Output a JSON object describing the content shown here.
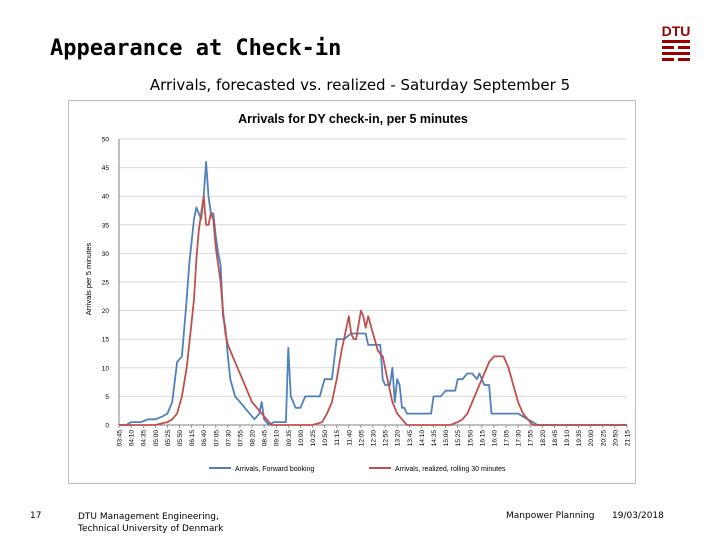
{
  "slide": {
    "title": "Appearance at Check-in",
    "subtitle": "Arrivals, forecasted vs. realized - Saturday September 5",
    "page_number": "17",
    "footer_org_line1": "DTU Management Engineering,",
    "footer_org_line2": "Technical University of Denmark",
    "footer_course": "Manpower Planning",
    "footer_date": "19/03/2018",
    "logo_text": "DTU",
    "logo_color": "#990000"
  },
  "chart_data": {
    "type": "line",
    "title": "Arrivals for DY check-in, per 5 minutes",
    "ylabel": "Arrivals per 5 minutes",
    "xlabel": "",
    "ylim": [
      0,
      50
    ],
    "yticks": [
      0,
      5,
      10,
      15,
      20,
      25,
      30,
      35,
      40,
      45,
      50
    ],
    "xlim": [
      "03:45",
      "21:15"
    ],
    "xticks": [
      "03:45",
      "04:10",
      "04:35",
      "05:00",
      "05:25",
      "05:50",
      "06:15",
      "06:40",
      "07:05",
      "07:30",
      "07:55",
      "08:20",
      "08:45",
      "09:10",
      "09:35",
      "10:00",
      "10:25",
      "10:50",
      "11:15",
      "11:40",
      "12:05",
      "12:30",
      "12:55",
      "13:20",
      "13:45",
      "14:10",
      "14:35",
      "15:00",
      "15:25",
      "15:50",
      "16:15",
      "16:40",
      "17:05",
      "17:30",
      "17:55",
      "18:20",
      "18:45",
      "19:10",
      "19:35",
      "20:00",
      "20:25",
      "20:50",
      "21:15"
    ],
    "grid": "horizontal",
    "legend_position": "bottom",
    "series": [
      {
        "name": "Arrivals, Forward booking",
        "color": "#4f81bd",
        "points": [
          [
            "03:45",
            0
          ],
          [
            "04:00",
            0
          ],
          [
            "04:10",
            0.5
          ],
          [
            "04:15",
            0.5
          ],
          [
            "04:30",
            0.5
          ],
          [
            "04:45",
            1
          ],
          [
            "05:00",
            1
          ],
          [
            "05:15",
            1.5
          ],
          [
            "05:25",
            2
          ],
          [
            "05:35",
            4
          ],
          [
            "05:45",
            11
          ],
          [
            "05:55",
            12
          ],
          [
            "06:05",
            22
          ],
          [
            "06:10",
            28
          ],
          [
            "06:15",
            32
          ],
          [
            "06:20",
            36
          ],
          [
            "06:25",
            38
          ],
          [
            "06:30",
            37
          ],
          [
            "06:35",
            36
          ],
          [
            "06:40",
            40
          ],
          [
            "06:45",
            46
          ],
          [
            "06:50",
            40
          ],
          [
            "06:55",
            37
          ],
          [
            "07:00",
            37
          ],
          [
            "07:05",
            33
          ],
          [
            "07:10",
            30
          ],
          [
            "07:15",
            28
          ],
          [
            "07:20",
            19
          ],
          [
            "07:25",
            17
          ],
          [
            "07:30",
            12
          ],
          [
            "07:35",
            8
          ],
          [
            "07:45",
            5
          ],
          [
            "07:55",
            4
          ],
          [
            "08:05",
            3
          ],
          [
            "08:15",
            2
          ],
          [
            "08:25",
            1
          ],
          [
            "08:35",
            2
          ],
          [
            "08:40",
            4
          ],
          [
            "08:45",
            1
          ],
          [
            "08:55",
            0
          ],
          [
            "09:05",
            0.5
          ],
          [
            "09:20",
            0.5
          ],
          [
            "09:30",
            0.5
          ],
          [
            "09:35",
            13.5
          ],
          [
            "09:40",
            5
          ],
          [
            "09:50",
            3
          ],
          [
            "10:00",
            3
          ],
          [
            "10:10",
            5
          ],
          [
            "10:25",
            5
          ],
          [
            "10:40",
            5
          ],
          [
            "10:50",
            8
          ],
          [
            "11:05",
            8
          ],
          [
            "11:15",
            15
          ],
          [
            "11:30",
            15
          ],
          [
            "11:45",
            16
          ],
          [
            "12:00",
            16
          ],
          [
            "12:15",
            16
          ],
          [
            "12:20",
            14
          ],
          [
            "12:35",
            14
          ],
          [
            "12:45",
            14
          ],
          [
            "12:50",
            8
          ],
          [
            "12:55",
            7
          ],
          [
            "13:05",
            7
          ],
          [
            "13:10",
            10
          ],
          [
            "13:15",
            4
          ],
          [
            "13:20",
            8
          ],
          [
            "13:25",
            7
          ],
          [
            "13:30",
            3
          ],
          [
            "13:35",
            3
          ],
          [
            "13:40",
            2
          ],
          [
            "13:50",
            2
          ],
          [
            "14:10",
            2
          ],
          [
            "14:20",
            2
          ],
          [
            "14:30",
            2
          ],
          [
            "14:35",
            5
          ],
          [
            "14:50",
            5
          ],
          [
            "15:00",
            6
          ],
          [
            "15:10",
            6
          ],
          [
            "15:20",
            6
          ],
          [
            "15:25",
            8
          ],
          [
            "15:35",
            8
          ],
          [
            "15:45",
            9
          ],
          [
            "15:55",
            9
          ],
          [
            "16:05",
            8
          ],
          [
            "16:10",
            9
          ],
          [
            "16:15",
            8
          ],
          [
            "16:20",
            7
          ],
          [
            "16:30",
            7
          ],
          [
            "16:35",
            2
          ],
          [
            "16:50",
            2
          ],
          [
            "17:00",
            2
          ],
          [
            "17:30",
            2
          ],
          [
            "17:50",
            1
          ],
          [
            "18:00",
            0.5
          ],
          [
            "18:10",
            0
          ],
          [
            "21:15",
            0
          ]
        ]
      },
      {
        "name": "Arrivals, realized, rolling 30 minutes",
        "color": "#c0504d",
        "points": [
          [
            "03:45",
            0
          ],
          [
            "05:00",
            0
          ],
          [
            "05:25",
            0.5
          ],
          [
            "05:35",
            1
          ],
          [
            "05:45",
            2
          ],
          [
            "05:55",
            5
          ],
          [
            "06:05",
            10
          ],
          [
            "06:15",
            18
          ],
          [
            "06:20",
            22
          ],
          [
            "06:25",
            29
          ],
          [
            "06:30",
            34
          ],
          [
            "06:35",
            37
          ],
          [
            "06:40",
            40
          ],
          [
            "06:45",
            35
          ],
          [
            "06:50",
            35
          ],
          [
            "06:55",
            37
          ],
          [
            "07:00",
            36
          ],
          [
            "07:05",
            31
          ],
          [
            "07:10",
            28
          ],
          [
            "07:15",
            25
          ],
          [
            "07:20",
            20
          ],
          [
            "07:25",
            16
          ],
          [
            "07:30",
            14
          ],
          [
            "07:40",
            12
          ],
          [
            "07:50",
            10
          ],
          [
            "08:00",
            8
          ],
          [
            "08:10",
            6
          ],
          [
            "08:20",
            4
          ],
          [
            "08:30",
            3
          ],
          [
            "08:40",
            2
          ],
          [
            "08:50",
            1
          ],
          [
            "09:00",
            0
          ],
          [
            "10:25",
            0
          ],
          [
            "10:45",
            0.5
          ],
          [
            "10:55",
            2
          ],
          [
            "11:05",
            4
          ],
          [
            "11:15",
            8
          ],
          [
            "11:25",
            13
          ],
          [
            "11:35",
            17
          ],
          [
            "11:40",
            19
          ],
          [
            "11:45",
            16
          ],
          [
            "11:50",
            15
          ],
          [
            "11:55",
            15
          ],
          [
            "12:05",
            20
          ],
          [
            "12:10",
            19
          ],
          [
            "12:15",
            17
          ],
          [
            "12:20",
            19
          ],
          [
            "12:30",
            16
          ],
          [
            "12:40",
            13
          ],
          [
            "12:50",
            12
          ],
          [
            "12:55",
            10
          ],
          [
            "13:05",
            6
          ],
          [
            "13:10",
            4
          ],
          [
            "13:20",
            2
          ],
          [
            "13:30",
            1
          ],
          [
            "13:40",
            0
          ],
          [
            "15:10",
            0
          ],
          [
            "15:25",
            0.5
          ],
          [
            "15:35",
            1
          ],
          [
            "15:45",
            2
          ],
          [
            "15:50",
            3
          ],
          [
            "16:00",
            5
          ],
          [
            "16:10",
            7
          ],
          [
            "16:20",
            9
          ],
          [
            "16:30",
            11
          ],
          [
            "16:40",
            12
          ],
          [
            "16:50",
            12
          ],
          [
            "17:00",
            12
          ],
          [
            "17:10",
            10
          ],
          [
            "17:20",
            7
          ],
          [
            "17:30",
            4
          ],
          [
            "17:40",
            2
          ],
          [
            "17:50",
            1
          ],
          [
            "18:00",
            0
          ],
          [
            "21:15",
            0
          ]
        ]
      }
    ]
  }
}
